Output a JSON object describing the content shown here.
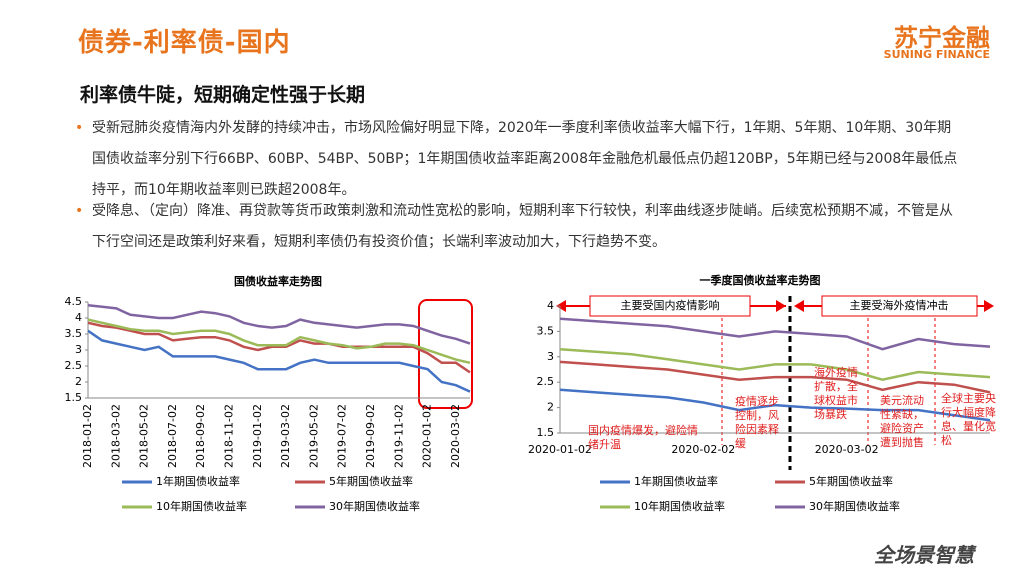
{
  "header": {
    "title": "债券-利率债-国内",
    "logo": "苏宁金融",
    "logo_sub": "SUNING FINANCE"
  },
  "subtitle": "利率债牛陡，短期确定性强于长期",
  "bullets": [
    "受新冠肺炎疫情海内外发酵的持续冲击，市场风险偏好明显下降，2020年一季度利率债收益率大幅下行，1年期、5年期、10年期、30年期国债收益率分别下行66BP、60BP、54BP、50BP；1年期国债收益率距离2008年金融危机最低点仍超120BP，5年期已经与2008年最低点持平，而10年期收益率则已跌超2008年。",
    "受降息、（定向）降准、再贷款等货币政策刺激和流动性宽松的影响，短期利率下行较快，利率曲线逐步陡峭。后续宽松预期不减，不管是从下行空间还是政策利好来看，短期利率债仍有投资价值；长端利率波动加大，下行趋势不变。"
  ],
  "footer": "全场景智慧",
  "chart_data": [
    {
      "type": "line",
      "title": "国债收益率走势图",
      "categories": [
        "2018-01-02",
        null,
        "2018-03-02",
        null,
        "2018-05-02",
        null,
        "2018-07-02",
        null,
        "2018-09-02",
        null,
        "2018-11-02",
        null,
        "2019-01-02",
        null,
        "2019-03-02",
        null,
        "2019-05-02",
        null,
        "2019-07-02",
        null,
        "2019-09-02",
        null,
        "2019-11-02",
        null,
        "2020-01-02",
        null,
        "2020-03-02",
        null
      ],
      "series": [
        {
          "name": "1年期国债收益率",
          "color": "#4472c4",
          "values": [
            3.6,
            3.3,
            3.2,
            3.1,
            3.0,
            3.1,
            2.8,
            2.8,
            2.8,
            2.8,
            2.7,
            2.6,
            2.4,
            2.4,
            2.4,
            2.6,
            2.7,
            2.6,
            2.6,
            2.6,
            2.6,
            2.6,
            2.6,
            2.5,
            2.4,
            2.0,
            1.9,
            1.7
          ]
        },
        {
          "name": "5年期国债收益率",
          "color": "#c0504d",
          "values": [
            3.85,
            3.75,
            3.7,
            3.6,
            3.5,
            3.5,
            3.3,
            3.35,
            3.4,
            3.4,
            3.3,
            3.1,
            3.0,
            3.1,
            3.1,
            3.3,
            3.2,
            3.2,
            3.1,
            3.1,
            3.1,
            3.1,
            3.1,
            3.1,
            2.9,
            2.6,
            2.6,
            2.3
          ]
        },
        {
          "name": "10年期国债收益率",
          "color": "#9bbb59",
          "values": [
            3.95,
            3.85,
            3.75,
            3.65,
            3.6,
            3.6,
            3.5,
            3.55,
            3.6,
            3.6,
            3.5,
            3.3,
            3.15,
            3.15,
            3.15,
            3.4,
            3.3,
            3.2,
            3.15,
            3.05,
            3.1,
            3.2,
            3.2,
            3.15,
            3.0,
            2.85,
            2.7,
            2.6
          ]
        },
        {
          "name": "30年期国债收益率",
          "color": "#8064a2",
          "values": [
            4.4,
            4.35,
            4.3,
            4.1,
            4.05,
            4.0,
            4.0,
            4.1,
            4.2,
            4.15,
            4.05,
            3.85,
            3.75,
            3.7,
            3.75,
            3.95,
            3.85,
            3.8,
            3.75,
            3.7,
            3.75,
            3.8,
            3.8,
            3.75,
            3.6,
            3.45,
            3.35,
            3.2
          ]
        }
      ],
      "ylim": [
        1.5,
        4.5
      ],
      "yticks": [
        1.5,
        2,
        2.5,
        3,
        3.5,
        4,
        4.5
      ]
    },
    {
      "type": "line",
      "title": "一季度国债收益率走势图",
      "categories": [
        "2020-01-02",
        null,
        null,
        null,
        "2020-02-02",
        null,
        null,
        null,
        "2020-03-02",
        null,
        null,
        null,
        null
      ],
      "series": [
        {
          "name": "1年期国债收益率",
          "color": "#4472c4",
          "values": [
            2.35,
            2.3,
            2.25,
            2.2,
            2.1,
            1.95,
            2.05,
            2.0,
            1.98,
            1.95,
            1.95,
            1.85,
            1.75
          ]
        },
        {
          "name": "5年期国债收益率",
          "color": "#c0504d",
          "values": [
            2.9,
            2.85,
            2.8,
            2.75,
            2.65,
            2.55,
            2.6,
            2.6,
            2.55,
            2.35,
            2.5,
            2.45,
            2.3
          ]
        },
        {
          "name": "10年期国债收益率",
          "color": "#9bbb59",
          "values": [
            3.15,
            3.1,
            3.05,
            2.95,
            2.85,
            2.75,
            2.85,
            2.85,
            2.75,
            2.55,
            2.7,
            2.65,
            2.6
          ]
        },
        {
          "name": "30年期国债收益率",
          "color": "#8064a2",
          "values": [
            3.75,
            3.7,
            3.65,
            3.6,
            3.5,
            3.4,
            3.5,
            3.45,
            3.4,
            3.15,
            3.35,
            3.25,
            3.2
          ]
        }
      ],
      "ylim": [
        1.5,
        4
      ],
      "yticks": [
        1.5,
        2,
        2.5,
        3,
        3.5,
        4
      ],
      "periods": [
        "主要受国内疫情影响",
        "主要受海外疫情冲击"
      ],
      "annotations": [
        "国内疫情爆发，避险情绪升温",
        "疫情逐步控制，风险因素释缓",
        "海外疫情扩散，全球权益市场暴跌",
        "美元流动性紧缺，避险资产遭到抛售",
        "全球主要央行大幅度降息、量化宽松"
      ]
    }
  ]
}
